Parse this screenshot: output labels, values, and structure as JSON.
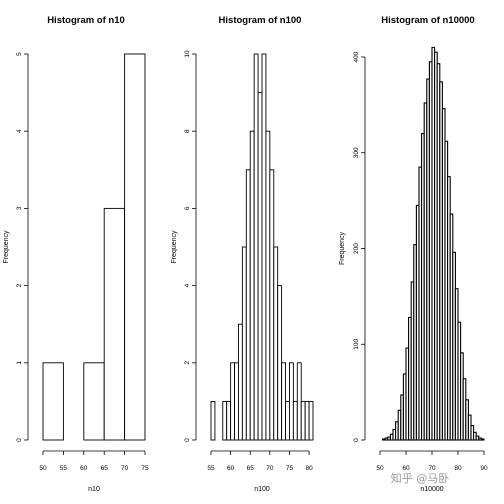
{
  "chart_data": [
    {
      "type": "bar",
      "title": "Histogram of n10",
      "xlabel": "n10",
      "ylabel": "Frequency",
      "bin_edges": [
        50,
        55,
        60,
        65,
        70,
        75
      ],
      "values": [
        1,
        0,
        1,
        3,
        5
      ],
      "xlim": [
        50,
        75
      ],
      "ylim": [
        0,
        5
      ],
      "xticks": [
        50,
        55,
        60,
        65,
        70,
        75
      ],
      "yticks": [
        0,
        1,
        2,
        3,
        4,
        5
      ],
      "bar_fill": "#ffffff",
      "grid": false
    },
    {
      "type": "bar",
      "title": "Histogram of n100",
      "xlabel": "n100",
      "ylabel": "Frequency",
      "bin_edges": [
        55,
        56,
        57,
        58,
        59,
        60,
        61,
        62,
        63,
        64,
        65,
        66,
        67,
        68,
        69,
        70,
        71,
        72,
        73,
        74,
        75,
        76,
        77,
        78,
        79,
        80,
        81
      ],
      "values": [
        1,
        0,
        0,
        1,
        1,
        2,
        2,
        3,
        5,
        7,
        8,
        10,
        9,
        10,
        8,
        7,
        5,
        4,
        2,
        1,
        2,
        1,
        2,
        1,
        1,
        1
      ],
      "xlim": [
        55,
        81
      ],
      "ylim": [
        0,
        10
      ],
      "xticks": [
        55,
        60,
        65,
        70,
        75,
        80
      ],
      "yticks": [
        0,
        2,
        4,
        6,
        8,
        10
      ],
      "bar_fill": "#ffffff",
      "grid": false
    },
    {
      "type": "bar",
      "title": "Histogram of n10000",
      "xlabel": "n10000",
      "ylabel": "Frequency",
      "bin_edges": [
        50,
        51,
        52,
        53,
        54,
        55,
        56,
        57,
        58,
        59,
        60,
        61,
        62,
        63,
        64,
        65,
        66,
        67,
        68,
        69,
        70,
        71,
        72,
        73,
        74,
        75,
        76,
        77,
        78,
        79,
        80,
        81,
        82,
        83,
        84,
        85,
        86,
        87,
        88,
        89,
        90
      ],
      "values": [
        0,
        1,
        2,
        3,
        6,
        11,
        19,
        31,
        47,
        69,
        96,
        128,
        165,
        204,
        245,
        285,
        320,
        352,
        377,
        395,
        410,
        405,
        393,
        374,
        346,
        312,
        275,
        236,
        196,
        158,
        123,
        91,
        64,
        42,
        26,
        15,
        8,
        4,
        2,
        1
      ],
      "xlim": [
        50,
        90
      ],
      "ylim": [
        0,
        400
      ],
      "xticks": [
        50,
        60,
        70,
        80,
        90
      ],
      "yticks": [
        0,
        100,
        200,
        300,
        400
      ],
      "bar_fill": "#ffffff",
      "grid": false
    }
  ],
  "watermark": "知乎 @马卧"
}
